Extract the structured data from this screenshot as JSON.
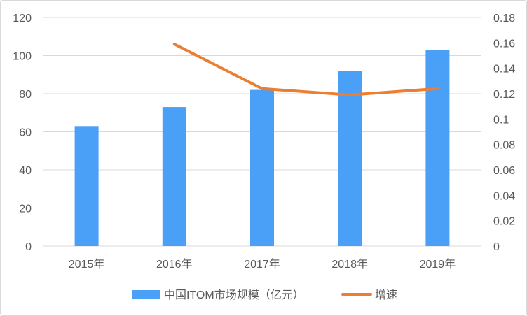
{
  "chart_data": {
    "type": "bar+line",
    "categories": [
      "2015年",
      "2016年",
      "2017年",
      "2018年",
      "2019年"
    ],
    "series": [
      {
        "name": "中国ITOM市场规模（亿元）",
        "type": "bar",
        "axis": "left",
        "color": "#4aa0f7",
        "values": [
          63,
          73,
          82,
          92,
          103
        ]
      },
      {
        "name": "增速",
        "type": "line",
        "axis": "right",
        "color": "#ed7d31",
        "values": [
          null,
          0.159,
          0.124,
          0.119,
          0.124
        ]
      }
    ],
    "left_axis": {
      "ylim": [
        0,
        120
      ],
      "ticks": [
        "0",
        "20",
        "40",
        "60",
        "80",
        "100",
        "120"
      ]
    },
    "right_axis": {
      "ylim": [
        0,
        0.18
      ],
      "ticks": [
        "0",
        "0.02",
        "0.04",
        "0.06",
        "0.08",
        "0.1",
        "0.12",
        "0.14",
        "0.16",
        "0.18"
      ]
    },
    "grid": true,
    "legend": "bottom"
  }
}
